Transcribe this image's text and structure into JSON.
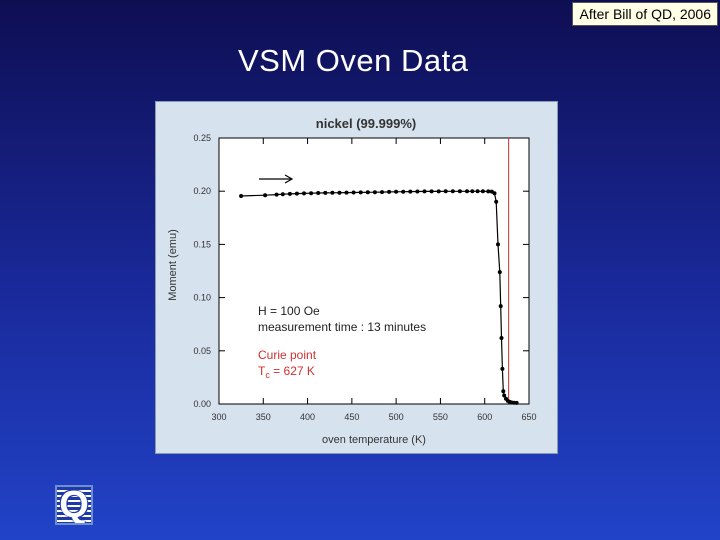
{
  "credit": "After Bill of QD, 2006",
  "slide_title": "VSM Oven Data",
  "logo": {
    "letter": "Q",
    "icon": "qd-logo-icon"
  },
  "chart_data": {
    "type": "scatter",
    "title": "nickel (99.999%)",
    "xlabel": "oven temperature (K)",
    "ylabel": "Moment (emu)",
    "xlim": [
      300,
      650
    ],
    "ylim": [
      0.0,
      0.25
    ],
    "xticks": [
      "300",
      "350",
      "400",
      "450",
      "500",
      "550",
      "600",
      "650"
    ],
    "yticks": [
      "0.00",
      "0.05",
      "0.10",
      "0.15",
      "0.20",
      "0.25"
    ],
    "grid": false,
    "series": [
      {
        "points": [
          [
            325,
            0.1955
          ],
          [
            352,
            0.1962
          ],
          [
            365,
            0.1968
          ],
          [
            372,
            0.1972
          ],
          [
            380,
            0.1975
          ],
          [
            388,
            0.1977
          ],
          [
            396,
            0.1979
          ],
          [
            404,
            0.1981
          ],
          [
            412,
            0.1983
          ],
          [
            420,
            0.1984
          ],
          [
            428,
            0.1985
          ],
          [
            436,
            0.1986
          ],
          [
            444,
            0.1987
          ],
          [
            452,
            0.1988
          ],
          [
            460,
            0.1989
          ],
          [
            468,
            0.199
          ],
          [
            476,
            0.1991
          ],
          [
            484,
            0.1992
          ],
          [
            492,
            0.1993
          ],
          [
            500,
            0.1994
          ],
          [
            508,
            0.1995
          ],
          [
            516,
            0.1996
          ],
          [
            524,
            0.1997
          ],
          [
            532,
            0.1998
          ],
          [
            540,
            0.1998
          ],
          [
            548,
            0.1998
          ],
          [
            556,
            0.1999
          ],
          [
            564,
            0.1999
          ],
          [
            572,
            0.1999
          ],
          [
            580,
            0.1999
          ],
          [
            586,
            0.1999
          ],
          [
            592,
            0.1999
          ],
          [
            598,
            0.1999
          ],
          [
            604,
            0.1998
          ],
          [
            608,
            0.1996
          ],
          [
            611,
            0.198
          ],
          [
            613,
            0.19
          ],
          [
            615,
            0.15
          ],
          [
            617,
            0.124
          ],
          [
            618,
            0.092
          ],
          [
            619,
            0.062
          ],
          [
            620,
            0.033
          ],
          [
            621,
            0.012
          ],
          [
            622,
            0.008
          ],
          [
            624,
            0.005
          ],
          [
            626,
            0.003
          ],
          [
            628,
            0.002
          ],
          [
            630,
            0.0015
          ],
          [
            633,
            0.0012
          ],
          [
            636,
            0.001
          ]
        ]
      }
    ],
    "curie_line_x": 627,
    "annotations": {
      "field": "H = 100 Oe",
      "time": "measurement time : 13 minutes",
      "curie_label": "Curie point",
      "tc_main": "T",
      "tc_sub": "c",
      "tc_value": " = 627 K"
    },
    "colors": {
      "curie": "#d03030",
      "data": "#000000",
      "frame_bg": "#d6e2ee",
      "plot_bg": "#ffffff"
    }
  }
}
